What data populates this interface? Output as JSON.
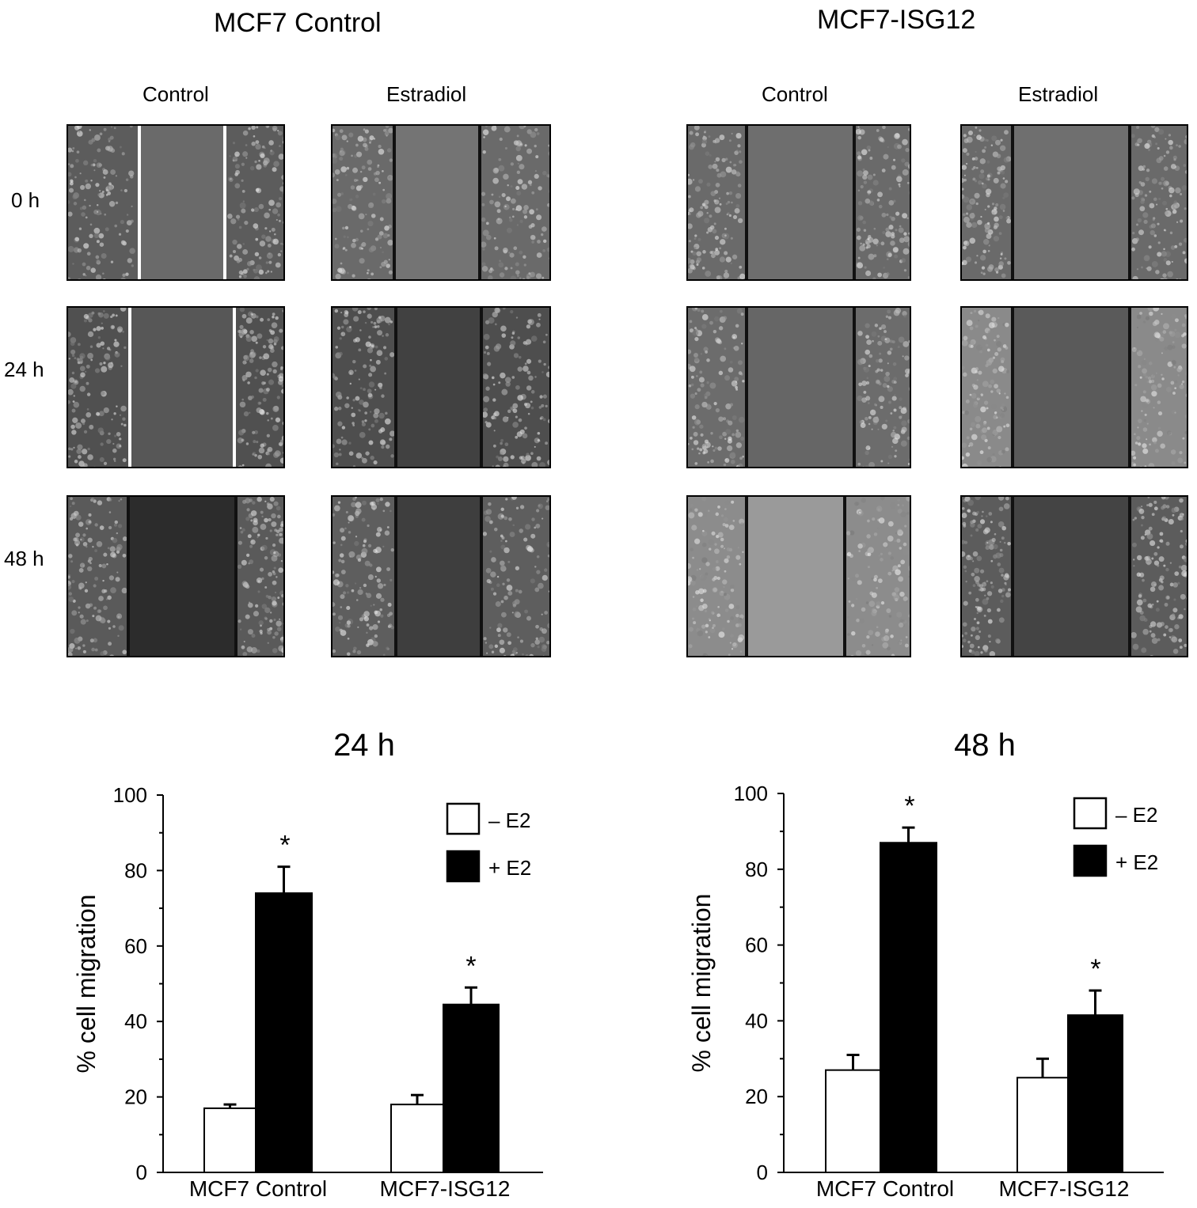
{
  "micrographs": {
    "panels": [
      {
        "title": "MCF7 Control",
        "columns": [
          "Control",
          "Estradiol"
        ]
      },
      {
        "title": "MCF7-ISG12",
        "columns": [
          "Control",
          "Estradiol"
        ]
      }
    ],
    "time_rows": [
      "0 h",
      "24 h",
      "48 h"
    ]
  },
  "chart_data": [
    {
      "type": "bar",
      "title": "24 h",
      "ylabel": "% cell migration",
      "categories": [
        "MCF7 Control",
        "MCF7-ISG12"
      ],
      "ylim": [
        0,
        100
      ],
      "yticks": [
        0,
        20,
        40,
        60,
        80,
        100
      ],
      "series": [
        {
          "name": "– E2",
          "fill": "#ffffff",
          "values": [
            17,
            18
          ],
          "errors": [
            1,
            2.5
          ]
        },
        {
          "name": "+ E2",
          "fill": "#000000",
          "values": [
            74,
            44.5
          ],
          "errors": [
            7,
            4.5
          ]
        }
      ],
      "significance": [
        "*",
        "*"
      ],
      "legend": "top-right"
    },
    {
      "type": "bar",
      "title": "48 h",
      "ylabel": "% cell migration",
      "categories": [
        "MCF7 Control",
        "MCF7-ISG12"
      ],
      "ylim": [
        0,
        100
      ],
      "yticks": [
        0,
        20,
        40,
        60,
        80,
        100
      ],
      "series": [
        {
          "name": "– E2",
          "fill": "#ffffff",
          "values": [
            27,
            25
          ],
          "errors": [
            4,
            5
          ]
        },
        {
          "name": "+ E2",
          "fill": "#000000",
          "values": [
            87,
            41.5
          ],
          "errors": [
            4,
            6.5
          ]
        }
      ],
      "significance": [
        "*",
        "*"
      ],
      "legend": "top-right"
    }
  ]
}
